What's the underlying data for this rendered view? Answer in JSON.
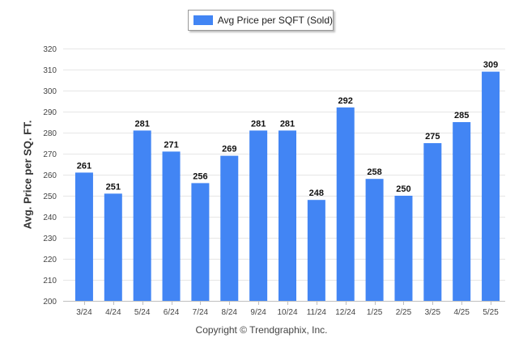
{
  "colors": {
    "bar": "#4285f4",
    "grid": "#e6e6e6",
    "axis": "#bfbfbf"
  },
  "legend": {
    "label": "Avg Price per SQFT (Sold)"
  },
  "footer": {
    "copyright": "Copyright © Trendgraphix, Inc."
  },
  "chart_data": {
    "type": "bar",
    "title": "",
    "xlabel": "",
    "ylabel": "Avg. Price per SQ. FT.",
    "ylim": [
      200,
      320
    ],
    "yticks": [
      200,
      210,
      220,
      230,
      240,
      250,
      260,
      270,
      280,
      290,
      300,
      310,
      320
    ],
    "grid": true,
    "legend_position": "top-center",
    "categories": [
      "3/24",
      "4/24",
      "5/24",
      "6/24",
      "7/24",
      "8/24",
      "9/24",
      "10/24",
      "11/24",
      "12/24",
      "1/25",
      "2/25",
      "3/25",
      "4/25",
      "5/25"
    ],
    "series": [
      {
        "name": "Avg Price per SQFT (Sold)",
        "values": [
          261,
          251,
          281,
          271,
          256,
          269,
          281,
          281,
          248,
          292,
          258,
          250,
          275,
          285,
          309
        ]
      }
    ]
  }
}
